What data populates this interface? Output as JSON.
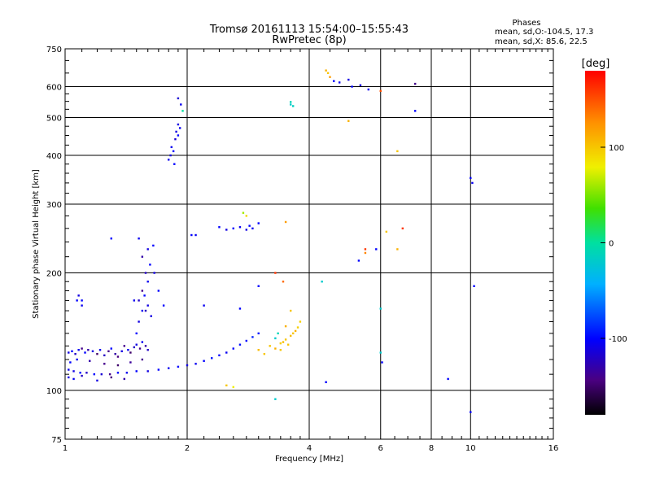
{
  "chart_data": {
    "type": "scatter",
    "title": "Tromsø 20161113 15:54:00–15:55:43",
    "subtitle": "RwPretec (8p)",
    "xlabel": "Frequency [MHz]",
    "ylabel": "Stationary phase Virtual Height [km]",
    "x_scale": "log",
    "y_scale": "log",
    "xlim": [
      1,
      16
    ],
    "ylim": [
      75,
      750
    ],
    "x_ticks": [
      1,
      2,
      4,
      6,
      8,
      10,
      16
    ],
    "x_tick_labels": [
      "1",
      "2",
      "4",
      "6",
      "8",
      "10",
      "16"
    ],
    "y_ticks": [
      75,
      100,
      200,
      300,
      400,
      500,
      600,
      750
    ],
    "y_tick_labels": [
      "75",
      "100",
      "200",
      "300",
      "400",
      "500",
      "600",
      "750"
    ],
    "grid": true,
    "stats": {
      "header": "Phases",
      "line_o": "mean, sd,O:-104.5, 17.3",
      "line_x": "mean, sd,X:  85.6, 22.5"
    },
    "colorbar": {
      "label": "[deg]",
      "range": [
        -180,
        180
      ],
      "ticks": [
        100,
        0,
        -100
      ],
      "tick_labels": [
        "100",
        "0",
        "-100"
      ]
    },
    "series": [
      {
        "points": [
          [
            1.02,
            113,
            -105
          ],
          [
            1.05,
            112,
            -110
          ],
          [
            1.09,
            111,
            -95
          ],
          [
            1.13,
            111,
            -120
          ],
          [
            1.18,
            110,
            -100
          ],
          [
            1.23,
            110,
            -115
          ],
          [
            1.29,
            110,
            -140
          ],
          [
            1.35,
            111,
            -100
          ],
          [
            1.42,
            111,
            -105
          ],
          [
            1.5,
            112,
            -100
          ],
          [
            1.6,
            112,
            -110
          ],
          [
            1.7,
            113,
            -100
          ],
          [
            1.8,
            114,
            -105
          ],
          [
            1.9,
            115,
            -100
          ],
          [
            2.0,
            116,
            -110
          ],
          [
            2.1,
            117,
            -105
          ],
          [
            2.2,
            119,
            -100
          ],
          [
            2.3,
            121,
            -95
          ],
          [
            2.4,
            123,
            -100
          ],
          [
            2.5,
            125,
            -105
          ],
          [
            2.6,
            128,
            -100
          ],
          [
            2.7,
            131,
            -95
          ],
          [
            2.8,
            134,
            -100
          ],
          [
            2.9,
            137,
            -90
          ],
          [
            3.0,
            140,
            -95
          ]
        ]
      },
      {
        "points": [
          [
            1.02,
            125,
            -110
          ],
          [
            1.04,
            126,
            -100
          ],
          [
            1.06,
            124,
            -120
          ],
          [
            1.08,
            127,
            -105
          ],
          [
            1.1,
            128,
            -140
          ],
          [
            1.12,
            125,
            -100
          ],
          [
            1.14,
            127,
            -130
          ],
          [
            1.17,
            126,
            -110
          ],
          [
            1.2,
            124,
            -150
          ],
          [
            1.22,
            127,
            -105
          ],
          [
            1.25,
            123,
            -120
          ],
          [
            1.28,
            126,
            -140
          ],
          [
            1.3,
            128,
            -100
          ],
          [
            1.33,
            124,
            -130
          ],
          [
            1.35,
            122,
            -145
          ],
          [
            1.38,
            126,
            -110
          ],
          [
            1.4,
            130,
            -140
          ],
          [
            1.43,
            127,
            -105
          ],
          [
            1.45,
            125,
            -150
          ],
          [
            1.48,
            129,
            -120
          ],
          [
            1.5,
            131,
            -110
          ],
          [
            1.53,
            128,
            -140
          ],
          [
            1.55,
            133,
            -105
          ],
          [
            1.58,
            130,
            -130
          ],
          [
            1.6,
            127,
            -120
          ],
          [
            1.03,
            118,
            -100
          ],
          [
            1.07,
            120,
            -105
          ],
          [
            1.15,
            119,
            -130
          ],
          [
            1.25,
            117,
            -140
          ],
          [
            1.35,
            116,
            -150
          ],
          [
            1.45,
            118,
            -135
          ],
          [
            1.55,
            120,
            -140
          ],
          [
            1.02,
            108,
            -110
          ],
          [
            1.05,
            107,
            -105
          ],
          [
            1.1,
            109,
            -120
          ],
          [
            1.2,
            106,
            -110
          ],
          [
            1.3,
            108,
            -145
          ],
          [
            1.4,
            107,
            -130
          ]
        ]
      },
      {
        "points": [
          [
            1.5,
            140,
            -100
          ],
          [
            1.52,
            150,
            -110
          ],
          [
            1.55,
            160,
            -105
          ],
          [
            1.52,
            170,
            -120
          ],
          [
            1.57,
            175,
            -100
          ],
          [
            1.6,
            165,
            -110
          ],
          [
            1.55,
            180,
            -140
          ],
          [
            1.6,
            190,
            -105
          ],
          [
            1.58,
            200,
            -120
          ],
          [
            1.62,
            210,
            -100
          ],
          [
            1.55,
            220,
            -130
          ],
          [
            1.6,
            230,
            -110
          ],
          [
            1.52,
            245,
            -105
          ],
          [
            1.65,
            235,
            -100
          ],
          [
            1.63,
            155,
            -110
          ],
          [
            1.58,
            160,
            -120
          ],
          [
            1.48,
            170,
            -105
          ],
          [
            1.66,
            200,
            -110
          ],
          [
            1.7,
            180,
            -100
          ]
        ]
      },
      {
        "points": [
          [
            1.8,
            390,
            -105
          ],
          [
            1.82,
            400,
            -110
          ],
          [
            1.85,
            410,
            -100
          ],
          [
            1.83,
            420,
            -105
          ],
          [
            1.87,
            440,
            -115
          ],
          [
            1.9,
            450,
            -100
          ],
          [
            1.88,
            460,
            -110
          ],
          [
            1.92,
            470,
            -105
          ],
          [
            1.86,
            380,
            -100
          ],
          [
            1.9,
            480,
            -110
          ],
          [
            1.93,
            540,
            -105
          ],
          [
            1.9,
            560,
            -115
          ],
          [
            1.95,
            520,
            0
          ]
        ]
      },
      {
        "points": [
          [
            2.05,
            250,
            -100
          ],
          [
            2.1,
            250,
            -105
          ],
          [
            2.4,
            262,
            -100
          ],
          [
            2.5,
            258,
            -110
          ],
          [
            2.6,
            260,
            -100
          ],
          [
            2.7,
            262,
            -105
          ],
          [
            2.8,
            258,
            -110
          ],
          [
            2.85,
            264,
            -100
          ],
          [
            2.9,
            260,
            -105
          ],
          [
            3.0,
            268,
            -100
          ],
          [
            2.75,
            285,
            60
          ],
          [
            2.8,
            280,
            90
          ],
          [
            3.5,
            270,
            120
          ]
        ]
      },
      {
        "points": [
          [
            3.2,
            130,
            100
          ],
          [
            3.3,
            128,
            110
          ],
          [
            3.4,
            132,
            95
          ],
          [
            3.5,
            135,
            100
          ],
          [
            3.6,
            138,
            105
          ],
          [
            3.65,
            140,
            100
          ],
          [
            3.7,
            142,
            110
          ],
          [
            3.75,
            145,
            95
          ],
          [
            3.55,
            131,
            100
          ],
          [
            3.45,
            133,
            105
          ],
          [
            3.3,
            136,
            -20
          ],
          [
            3.35,
            140,
            -10
          ],
          [
            3.4,
            127,
            100
          ],
          [
            3.5,
            146,
            110
          ],
          [
            3.1,
            124,
            100
          ],
          [
            3.0,
            127,
            105
          ],
          [
            3.6,
            160,
            100
          ],
          [
            3.8,
            150,
            95
          ]
        ]
      },
      {
        "points": [
          [
            3.0,
            185,
            -100
          ],
          [
            3.3,
            200,
            160
          ],
          [
            3.45,
            190,
            140
          ],
          [
            3.6,
            540,
            -20
          ],
          [
            3.6,
            548,
            -10
          ],
          [
            3.65,
            535,
            -15
          ],
          [
            4.4,
            660,
            110
          ],
          [
            4.45,
            650,
            100
          ],
          [
            4.5,
            635,
            120
          ],
          [
            4.6,
            620,
            -100
          ],
          [
            4.75,
            615,
            -105
          ],
          [
            5.0,
            625,
            -110
          ],
          [
            5.1,
            600,
            -100
          ],
          [
            5.35,
            605,
            -110
          ],
          [
            5.6,
            590,
            -105
          ],
          [
            6.0,
            585,
            150
          ],
          [
            7.3,
            610,
            -140
          ],
          [
            7.3,
            520,
            -100
          ],
          [
            5.0,
            490,
            110
          ],
          [
            6.6,
            410,
            100
          ],
          [
            5.5,
            230,
            160
          ],
          [
            5.5,
            225,
            130
          ],
          [
            5.85,
            230,
            -100
          ],
          [
            6.6,
            230,
            110
          ],
          [
            6.8,
            260,
            160
          ],
          [
            6.2,
            255,
            100
          ],
          [
            5.3,
            215,
            -100
          ],
          [
            4.3,
            190,
            -20
          ],
          [
            6.0,
            162,
            -20
          ],
          [
            6.0,
            125,
            -20
          ],
          [
            6.05,
            118,
            -100
          ],
          [
            4.4,
            105,
            -100
          ],
          [
            3.3,
            95,
            -20
          ],
          [
            2.5,
            103,
            100
          ],
          [
            2.6,
            102,
            80
          ],
          [
            8.8,
            107,
            -100
          ],
          [
            10.0,
            88,
            -100
          ],
          [
            10.0,
            350,
            -100
          ],
          [
            10.1,
            340,
            -105
          ],
          [
            10.2,
            185,
            -100
          ],
          [
            2.7,
            162,
            -100
          ],
          [
            2.2,
            165,
            -105
          ],
          [
            1.75,
            165,
            -100
          ],
          [
            1.3,
            245,
            -100
          ],
          [
            1.1,
            170,
            -100
          ],
          [
            1.08,
            175,
            -110
          ],
          [
            1.1,
            165,
            -105
          ],
          [
            1.07,
            170,
            -100
          ]
        ]
      }
    ]
  }
}
